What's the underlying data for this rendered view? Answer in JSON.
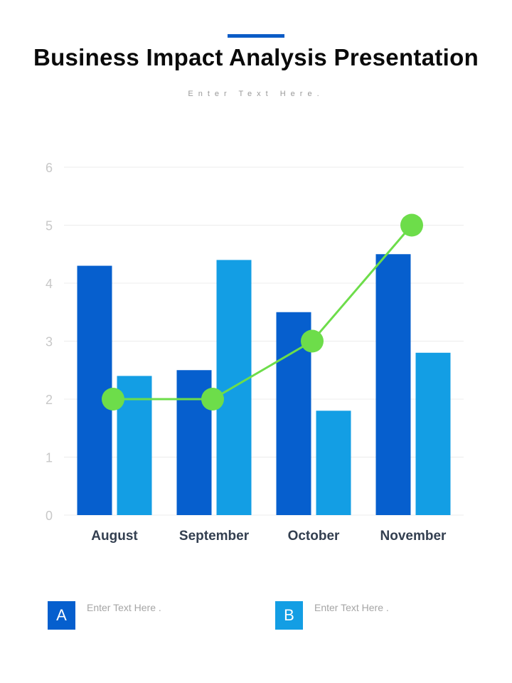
{
  "header": {
    "title": "Business Impact Analysis Presentation",
    "subtitle": "Enter Text Here."
  },
  "colors": {
    "accent": "#0b5cc6",
    "series_a": "#065fce",
    "series_b": "#139ee4",
    "line": "#6ddd4a",
    "axis_text": "#c8c8c8",
    "category_text": "#333f50",
    "grid": "#ececec"
  },
  "chart_data": {
    "type": "bar",
    "categories": [
      "August",
      "September",
      "October",
      "November"
    ],
    "series": [
      {
        "values": [
          4.3,
          2.5,
          3.5,
          4.5
        ]
      },
      {
        "values": [
          2.4,
          4.4,
          1.8,
          2.8
        ]
      }
    ],
    "line_series": {
      "values": [
        2,
        2,
        3,
        5
      ]
    },
    "ylim": [
      0,
      6
    ],
    "yticks": [
      "0",
      "1",
      "2",
      "3",
      "4",
      "5",
      "6"
    ],
    "grid": true
  },
  "legend": [
    {
      "badge": "A",
      "text": "Enter Text Here ."
    },
    {
      "badge": "B",
      "text": "Enter Text Here ."
    }
  ]
}
